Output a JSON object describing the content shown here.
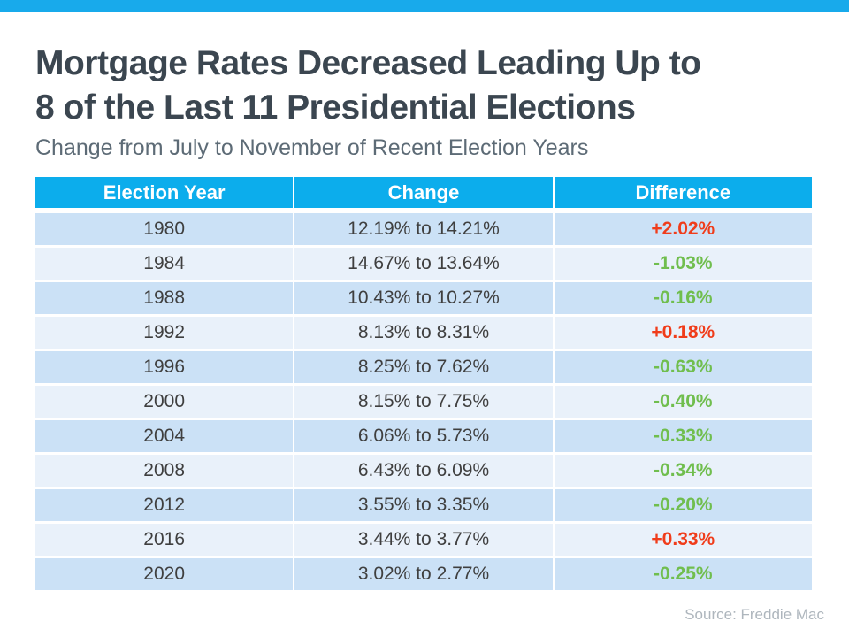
{
  "page": {
    "title_lines": [
      "Mortgage Rates Decreased Leading Up to",
      "8 of the Last 11 Presidential Elections"
    ],
    "subtitle": "Change from July to November of Recent Election Years",
    "source": "Source: Freddie Mac"
  },
  "colors": {
    "accent_bar": "#18AAEB",
    "header_bg": "#0CADEC",
    "row_dark": "#CBE1F6",
    "row_light": "#E9F1FA",
    "increase_red": "#F03C1A",
    "decrease_green": "#70BE4E",
    "title_text": "#3B4650",
    "subtitle_text": "#5D6B76",
    "cell_text": "#3F3F3F",
    "source_text": "#AEB6BD"
  },
  "chart_data": {
    "type": "table",
    "title": "Mortgage Rates Decreased Leading Up to 8 of the Last 11 Presidential Elections",
    "subtitle": "Change from July to November of Recent Election Years",
    "columns": [
      "Election Year",
      "Change",
      "Difference"
    ],
    "rows": [
      {
        "year": "1980",
        "change": "12.19% to 14.21%",
        "difference": "+2.02%",
        "direction": "up"
      },
      {
        "year": "1984",
        "change": "14.67% to 13.64%",
        "difference": "-1.03%",
        "direction": "down"
      },
      {
        "year": "1988",
        "change": "10.43% to 10.27%",
        "difference": "-0.16%",
        "direction": "down"
      },
      {
        "year": "1992",
        "change": "8.13% to 8.31%",
        "difference": "+0.18%",
        "direction": "up"
      },
      {
        "year": "1996",
        "change": "8.25% to 7.62%",
        "difference": "-0.63%",
        "direction": "down"
      },
      {
        "year": "2000",
        "change": "8.15% to 7.75%",
        "difference": "-0.40%",
        "direction": "down"
      },
      {
        "year": "2004",
        "change": "6.06% to 5.73%",
        "difference": "-0.33%",
        "direction": "down"
      },
      {
        "year": "2008",
        "change": "6.43% to 6.09%",
        "difference": "-0.34%",
        "direction": "down"
      },
      {
        "year": "2012",
        "change": "3.55% to 3.35%",
        "difference": "-0.20%",
        "direction": "down"
      },
      {
        "year": "2016",
        "change": "3.44% to 3.77%",
        "difference": "+0.33%",
        "direction": "up"
      },
      {
        "year": "2020",
        "change": "3.02% to 2.77%",
        "difference": "-0.25%",
        "direction": "down"
      }
    ],
    "source": "Source: Freddie Mac"
  }
}
